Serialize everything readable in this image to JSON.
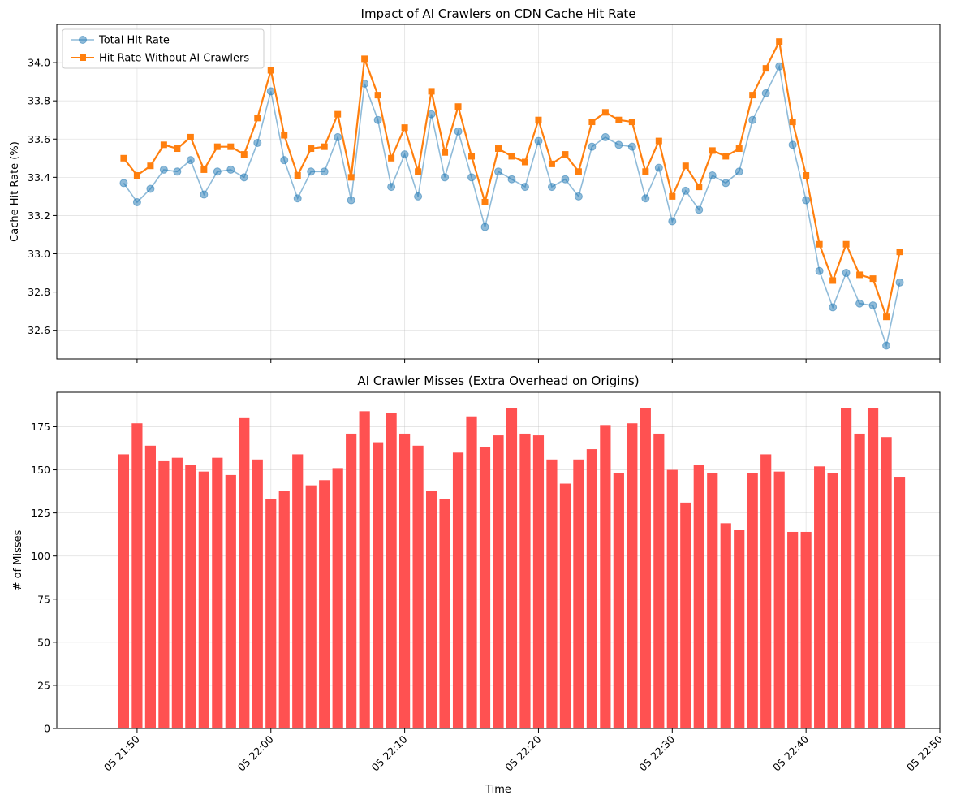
{
  "chart_data": [
    {
      "type": "line",
      "title": "Impact of AI Crawlers on CDN Cache Hit Rate",
      "xlabel": "",
      "ylabel": "Cache Hit Rate (%)",
      "x_start": "05 21:49",
      "x_step_minutes": 1,
      "xlim": [
        "05 21:44",
        "05 22:50"
      ],
      "ylim": [
        32.45,
        34.2
      ],
      "yticks": [
        32.6,
        32.8,
        33.0,
        33.2,
        33.4,
        33.6,
        33.8,
        34.0
      ],
      "ytick_labels": [
        "32.6",
        "32.8",
        "33.0",
        "33.2",
        "33.4",
        "33.6",
        "33.8",
        "34.0"
      ],
      "grid": true,
      "legend": "top-left",
      "series": [
        {
          "name": "Total Hit Rate",
          "color": "#1f77b4",
          "marker": "circle",
          "values": [
            33.37,
            33.27,
            33.34,
            33.44,
            33.43,
            33.49,
            33.31,
            33.43,
            33.44,
            33.4,
            33.58,
            33.85,
            33.49,
            33.29,
            33.43,
            33.43,
            33.61,
            33.28,
            33.89,
            33.7,
            33.35,
            33.52,
            33.3,
            33.73,
            33.4,
            33.64,
            33.4,
            33.14,
            33.43,
            33.39,
            33.35,
            33.59,
            33.35,
            33.39,
            33.3,
            33.56,
            33.61,
            33.57,
            33.56,
            33.29,
            33.45,
            33.17,
            33.33,
            33.23,
            33.41,
            33.37,
            33.43,
            33.7,
            33.84,
            33.98,
            33.57,
            33.28,
            32.91,
            32.72,
            32.9,
            32.74,
            32.73,
            32.52,
            32.85
          ]
        },
        {
          "name": "Hit Rate Without AI Crawlers",
          "color": "#ff7f0e",
          "marker": "square",
          "values": [
            33.5,
            33.41,
            33.46,
            33.57,
            33.55,
            33.61,
            33.44,
            33.56,
            33.56,
            33.52,
            33.71,
            33.96,
            33.62,
            33.41,
            33.55,
            33.56,
            33.73,
            33.4,
            34.02,
            33.83,
            33.5,
            33.66,
            33.43,
            33.85,
            33.53,
            33.77,
            33.51,
            33.27,
            33.55,
            33.51,
            33.48,
            33.7,
            33.47,
            33.52,
            33.43,
            33.69,
            33.74,
            33.7,
            33.69,
            33.43,
            33.59,
            33.3,
            33.46,
            33.35,
            33.54,
            33.51,
            33.55,
            33.83,
            33.97,
            34.11,
            33.69,
            33.41,
            33.05,
            32.86,
            33.05,
            32.89,
            32.87,
            32.67,
            33.01
          ]
        }
      ]
    },
    {
      "type": "bar",
      "title": "AI Crawler Misses (Extra Overhead on Origins)",
      "xlabel": "Time",
      "ylabel": "# of Misses",
      "x_start": "05 21:49",
      "x_step_minutes": 1,
      "xlim": [
        "05 21:44",
        "05 22:50"
      ],
      "xticks": [
        "05 21:50",
        "05 22:00",
        "05 22:10",
        "05 22:20",
        "05 22:30",
        "05 22:40",
        "05 22:50"
      ],
      "ylim": [
        0,
        195
      ],
      "yticks": [
        0,
        25,
        50,
        75,
        100,
        125,
        150,
        175
      ],
      "ytick_labels": [
        "0",
        "25",
        "50",
        "75",
        "100",
        "125",
        "150",
        "175"
      ],
      "grid": true,
      "series": [
        {
          "color": "#ff5151",
          "values": [
            159,
            177,
            164,
            155,
            157,
            153,
            149,
            157,
            147,
            180,
            156,
            133,
            138,
            159,
            141,
            144,
            151,
            171,
            184,
            166,
            183,
            171,
            164,
            138,
            133,
            160,
            181,
            163,
            170,
            186,
            171,
            170,
            156,
            142,
            156,
            162,
            176,
            148,
            177,
            186,
            171,
            150,
            131,
            153,
            148,
            119,
            115,
            148,
            159,
            149,
            114,
            114,
            152,
            148,
            186,
            171,
            186,
            169,
            146
          ]
        }
      ]
    }
  ]
}
